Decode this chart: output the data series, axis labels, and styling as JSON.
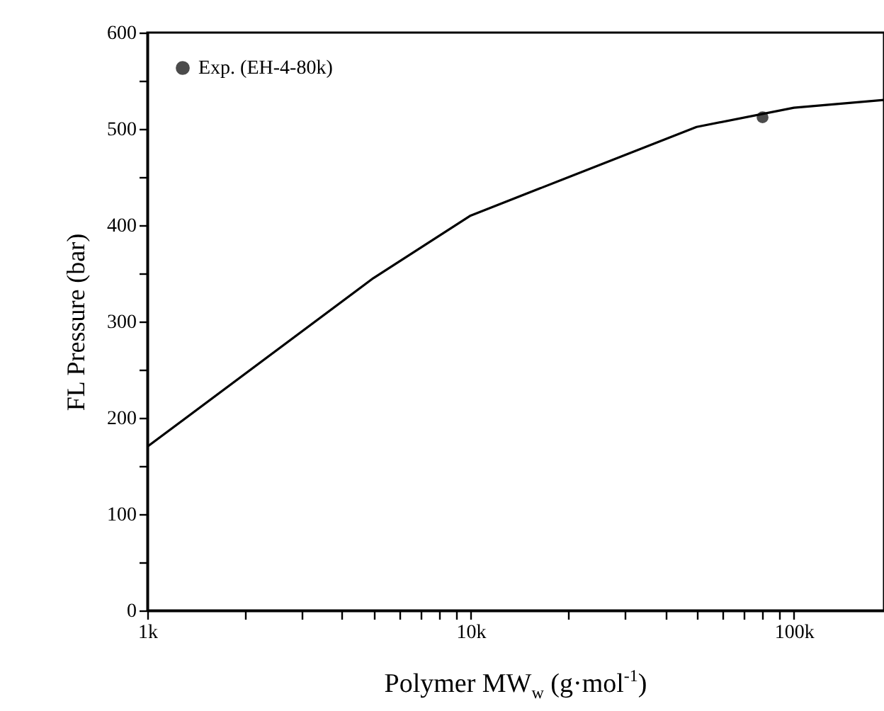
{
  "chart_data": {
    "type": "line",
    "xlabel": "Polymer MW$_{w}$ (g·mol$^{-1}$)",
    "ylabel": "FL Pressure (bar)",
    "log": "x",
    "grid": false,
    "legend": "top left",
    "xlim": [
      1000,
      190000
    ],
    "ylim": [
      0,
      600
    ],
    "xticks": [
      {
        "value": 1000,
        "label": "1k"
      },
      {
        "value": 2000,
        "label": null
      },
      {
        "value": 3000,
        "label": null
      },
      {
        "value": 4000,
        "label": null
      },
      {
        "value": 5000,
        "label": null
      },
      {
        "value": 6000,
        "label": null
      },
      {
        "value": 7000,
        "label": null
      },
      {
        "value": 8000,
        "label": null
      },
      {
        "value": 9000,
        "label": null
      },
      {
        "value": 10000,
        "label": "10k"
      },
      {
        "value": 20000,
        "label": null
      },
      {
        "value": 30000,
        "label": null
      },
      {
        "value": 40000,
        "label": null
      },
      {
        "value": 50000,
        "label": null
      },
      {
        "value": 60000,
        "label": null
      },
      {
        "value": 70000,
        "label": null
      },
      {
        "value": 80000,
        "label": null
      },
      {
        "value": 90000,
        "label": null
      },
      {
        "value": 100000,
        "label": "100k"
      }
    ],
    "yticks": [
      0,
      {
        "value": 50,
        "label": null
      },
      100,
      {
        "value": 150,
        "label": null
      },
      200,
      {
        "value": 250,
        "label": null
      },
      300,
      {
        "value": 350,
        "label": null
      },
      400,
      {
        "value": 450,
        "label": null
      },
      500,
      {
        "value": 550,
        "label": null
      },
      600
    ],
    "series": [
      {
        "type": "line",
        "color": "#000000",
        "marker": "none",
        "line_style": "solid",
        "x": [
          1000,
          5000,
          10000,
          50000,
          100000,
          190000
        ],
        "values": [
          170,
          345,
          410,
          502,
          522,
          530
        ]
      },
      {
        "type": "scatter",
        "name": "Exp. (EH-4-80k)",
        "color": "#000000",
        "marker": "circle",
        "x": [
          80000
        ],
        "values": [
          512
        ]
      }
    ]
  }
}
